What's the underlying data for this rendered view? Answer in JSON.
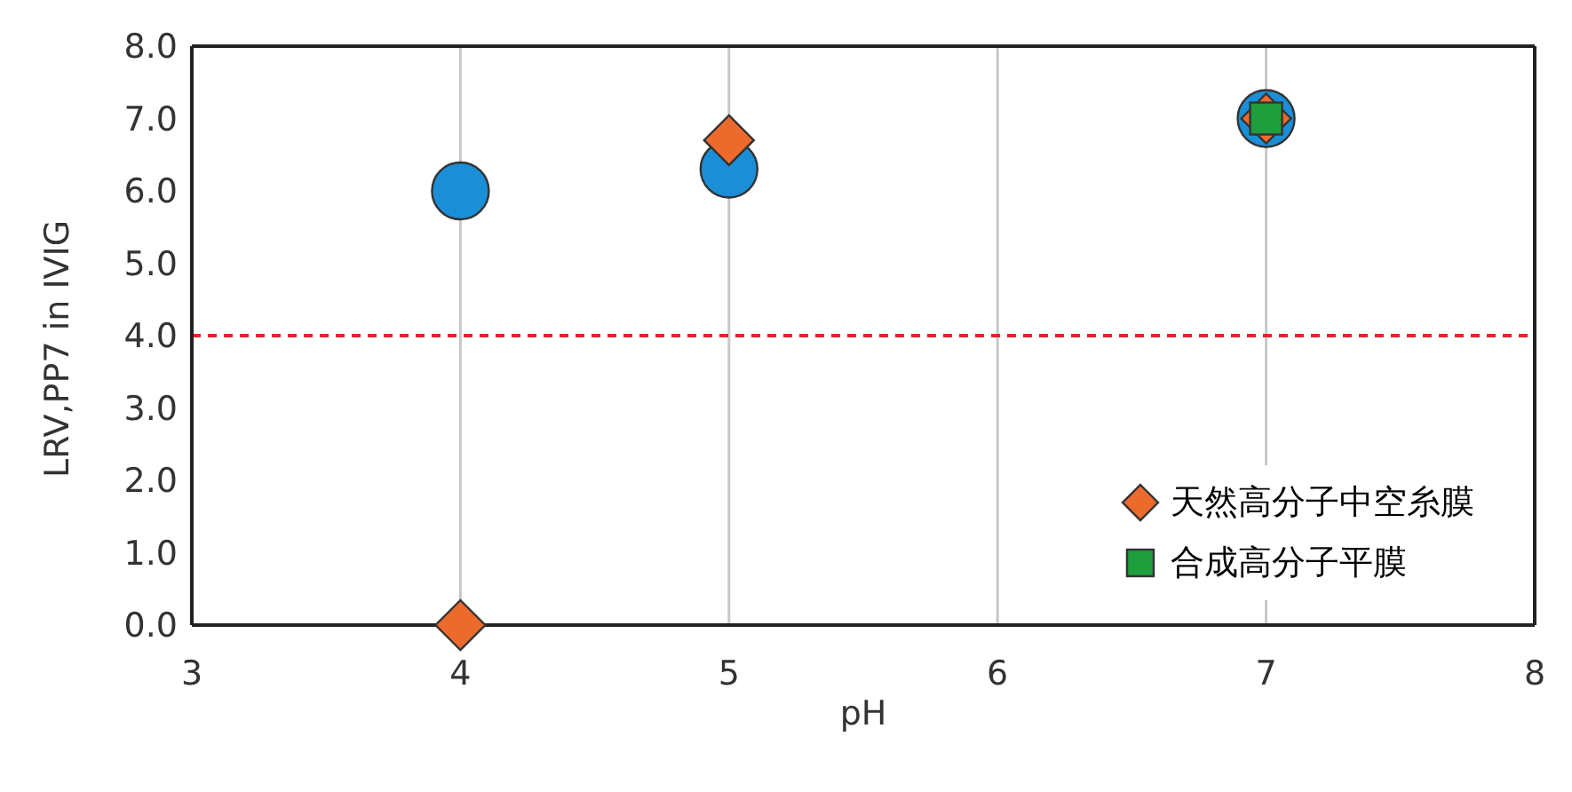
{
  "chart_data": {
    "type": "scatter",
    "xlabel": "pH",
    "ylabel": "LRV,PP7 in IVIG",
    "xlim": [
      3,
      8
    ],
    "xticks": [
      3,
      4,
      5,
      6,
      7,
      8
    ],
    "ylim": [
      0,
      8
    ],
    "yticks": [
      {
        "value": 0,
        "label": "0.0"
      },
      {
        "value": 1,
        "label": "1.0"
      },
      {
        "value": 2,
        "label": "2.0"
      },
      {
        "value": 3,
        "label": "3.0"
      },
      {
        "value": 4,
        "label": "4.0"
      },
      {
        "value": 5,
        "label": "5.0"
      },
      {
        "value": 6,
        "label": "6.0"
      },
      {
        "value": 7,
        "label": "7.0"
      },
      {
        "value": 8,
        "label": "8.0"
      }
    ],
    "grid": "x",
    "legend": "bottom right",
    "ref_lines": [
      {
        "axis": "y",
        "value": 4,
        "color": "#e0262a",
        "line_style": "dashed"
      }
    ],
    "series": [
      {
        "color": "#1a8fd8",
        "marker": "circle",
        "x": [
          4,
          5,
          7
        ],
        "values": [
          6.0,
          6.3,
          7.0
        ]
      },
      {
        "name": "天然高分子中空糸膜",
        "color": "#ec6a2c",
        "marker": "diamond",
        "x": [
          4,
          5,
          7
        ],
        "values": [
          0.0,
          6.7,
          7.0
        ]
      },
      {
        "name": "合成高分子平膜",
        "color": "#1e9e3c",
        "marker": "square",
        "x": [
          7
        ],
        "values": [
          7.0
        ]
      }
    ]
  }
}
